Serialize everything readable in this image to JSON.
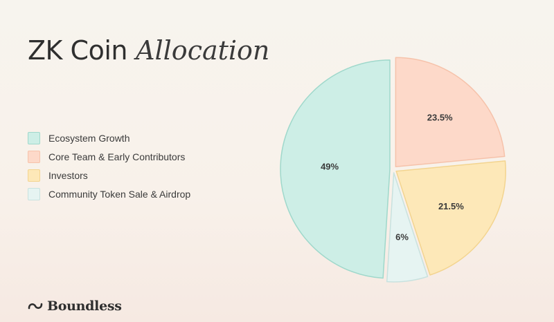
{
  "title": {
    "main": "ZK Coin",
    "accent": "Allocation"
  },
  "brand": {
    "name": "Boundless",
    "icon": "boundless-logo-icon"
  },
  "chart_data": {
    "type": "pie",
    "title": "ZK Coin Allocation",
    "legend_position": "left",
    "slices": [
      {
        "name": "Core Team & Early Contributors",
        "value": 23.5,
        "label": "23.5%",
        "fill": "#fdd9c9",
        "stroke": "#f6c2aa"
      },
      {
        "name": "Investors",
        "value": 21.5,
        "label": "21.5%",
        "fill": "#fde8b8",
        "stroke": "#f3d48f"
      },
      {
        "name": "Community Token Sale & Airdrop",
        "value": 6,
        "label": "6%",
        "fill": "#e6f4f2",
        "stroke": "#c8e2df"
      },
      {
        "name": "Ecosystem Growth",
        "value": 49,
        "label": "49%",
        "fill": "#cdeee6",
        "stroke": "#9fd8cb"
      }
    ],
    "legend": [
      {
        "name": "Ecosystem Growth",
        "fill": "#cdeee6",
        "stroke": "#9fd8cb"
      },
      {
        "name": "Core Team & Early Contributors",
        "fill": "#fdd9c9",
        "stroke": "#f6c2aa"
      },
      {
        "name": "Investors",
        "fill": "#fde8b8",
        "stroke": "#f3d48f"
      },
      {
        "name": "Community Token Sale & Airdrop",
        "fill": "#e6f4f2",
        "stroke": "#c8e2df"
      }
    ]
  }
}
